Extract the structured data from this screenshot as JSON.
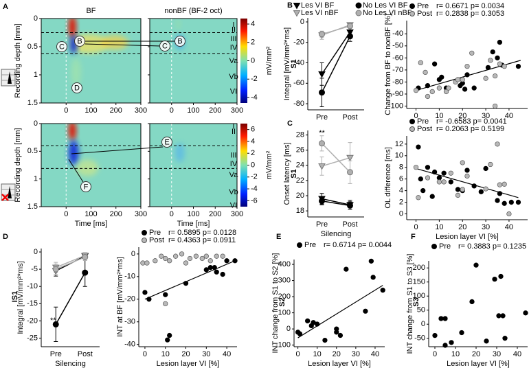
{
  "chart_data": [
    {
      "panel": "A",
      "type": "heatmap",
      "titles": [
        "BF",
        "nonBF (BF-2 oct)"
      ],
      "ylabel": "Recording depth [mm]",
      "xlim": [
        -100,
        300
      ],
      "xticks": [
        0,
        100,
        200,
        300
      ],
      "ylim": [
        0,
        1.5
      ],
      "yticks": [
        0,
        0.5,
        1,
        1.5
      ],
      "layers": [
        "I",
        "II",
        "III",
        "IV",
        "Va",
        "Vb",
        "VI"
      ],
      "boundaries": [
        0.25,
        0.62
      ],
      "clim": [
        -4.6,
        4.6
      ],
      "cticks": [
        -4,
        -2,
        0,
        2,
        4
      ],
      "clabel": "mV/mm²",
      "annotations": [
        "C",
        "B",
        "C",
        "B",
        "D"
      ]
    },
    {
      "type": "heatmap",
      "ylabel": "Recording depth [mm]",
      "xlabel": "Time [ms]",
      "xlim": [
        -100,
        300
      ],
      "xticks": [
        0,
        100,
        200,
        300
      ],
      "ylim": [
        0,
        1.5
      ],
      "yticks": [
        0,
        0.5,
        1,
        1.5
      ],
      "layers": [
        "I",
        "II",
        "III",
        "IV",
        "Va",
        "Vb",
        "VI"
      ],
      "boundaries": [
        0.4,
        0.81
      ],
      "clim": [
        -7,
        7
      ],
      "cticks": [
        -6,
        -4,
        -2,
        0,
        2,
        4,
        6
      ],
      "clabel": "mV/mm²",
      "annotations": [
        "E",
        "F"
      ]
    },
    {
      "panel": "B",
      "type": "line",
      "side_label": "S1",
      "ylabel": "Integral [mV/mm²*ms]",
      "categories": [
        "Pre",
        "Post"
      ],
      "ylim": [
        -86,
        4
      ],
      "yticks": [
        -80,
        -60,
        -40,
        -20,
        0
      ],
      "legend": true,
      "series": [
        {
          "name": "Les VI BF",
          "color": "#000000",
          "marker": "v",
          "values": [
            -51,
            -10
          ],
          "errors": [
            11,
            4
          ]
        },
        {
          "name": "Les VI nBF",
          "color": "#b0b0b0",
          "marker": "v",
          "values": [
            -13,
            -3
          ],
          "errors": [
            4,
            2
          ]
        },
        {
          "name": "No Les VI BF",
          "color": "#000000",
          "marker": "o",
          "values": [
            -69,
            -14
          ],
          "errors": [
            14,
            5
          ]
        },
        {
          "name": "No Les VI nBF",
          "color": "#b0b0b0",
          "marker": "o",
          "values": [
            -12,
            -4
          ],
          "errors": [
            3,
            2
          ]
        }
      ]
    },
    {
      "type": "scatter",
      "ylabel": "Change from BF to nonBF [%]",
      "xlim": [
        -4,
        48
      ],
      "xticks": [
        0,
        10,
        20,
        30,
        40
      ],
      "ylim": [
        -102,
        -29
      ],
      "yticks": [
        -100,
        -90,
        -80,
        -70,
        -60,
        -50,
        -40
      ],
      "series": [
        {
          "name": "Pre",
          "stats": "r= 0.6671  p= 0.0034",
          "color": "#000000",
          "x": [
            1,
            5,
            8,
            10,
            11,
            13,
            19,
            20,
            21,
            22,
            25,
            31,
            33,
            35,
            36,
            37,
            44
          ],
          "y": [
            -85,
            -83,
            -65,
            -78,
            -76,
            -85,
            -83,
            -81,
            -86,
            -74,
            -85,
            -68,
            -55,
            -60,
            -47,
            -66,
            -67
          ]
        },
        {
          "name": "Post",
          "stats": "r= 0.2838  p= 0.3053",
          "color": "#b8b8b8",
          "x": [
            0,
            2,
            4,
            5,
            7,
            10,
            13,
            14,
            17,
            18,
            20,
            22,
            24,
            30,
            32,
            34,
            34,
            36,
            38
          ],
          "y": [
            -87,
            -64,
            -72,
            -92,
            -88,
            -85,
            -88,
            -85,
            -80,
            -78,
            -78,
            -67,
            -56,
            -77,
            -62,
            -75,
            -100,
            -65,
            -67
          ]
        }
      ],
      "fit": {
        "x": [
          0,
          45
        ],
        "y": [
          -87,
          -62
        ]
      }
    },
    {
      "panel": "C",
      "type": "line",
      "side_label": "S1",
      "ylabel": "Onset latency [ms]",
      "xlabel": "Silencing",
      "annotation": "**",
      "categories": [
        "Pre",
        "Post"
      ],
      "ylim": [
        17.2,
        28.6
      ],
      "yticks": [
        18,
        20,
        22,
        24,
        26,
        28
      ],
      "series": [
        {
          "name": "Les VI BF",
          "color": "#000000",
          "marker": "v",
          "values": [
            19.6,
            18.8
          ],
          "errors": [
            0.7,
            0.6
          ]
        },
        {
          "name": "Les VI nBF",
          "color": "#b0b0b0",
          "marker": "v",
          "values": [
            23.9,
            25.0
          ],
          "errors": [
            1.2,
            2.0
          ]
        },
        {
          "name": "No Les VI BF",
          "color": "#000000",
          "marker": "o",
          "values": [
            19.3,
            18.7
          ],
          "errors": [
            0.5,
            0.5
          ]
        },
        {
          "name": "No Les VI nBF",
          "color": "#b0b0b0",
          "marker": "o",
          "values": [
            26.9,
            23.1
          ],
          "errors": [
            1.0,
            1.5
          ]
        }
      ]
    },
    {
      "type": "scatter",
      "ylabel": "OL difference [ms]",
      "xlabel": "Lesion layer VI [%]",
      "xlim": [
        -4,
        48
      ],
      "xticks": [
        0,
        10,
        20,
        30,
        40
      ],
      "ylim": [
        -1,
        13.4
      ],
      "yticks": [
        0,
        2,
        4,
        6,
        8,
        10,
        12
      ],
      "series": [
        {
          "name": "Pre",
          "stats": "r= -0.6583  p= 0.0041",
          "color": "#000000",
          "x": [
            1,
            2,
            3,
            5,
            7,
            8,
            10,
            12,
            15,
            18,
            20,
            22,
            25,
            28,
            30,
            35,
            36,
            38,
            41,
            44
          ],
          "y": [
            11.5,
            6,
            4,
            8,
            3,
            7.2,
            6.2,
            7,
            5.5,
            4.2,
            4,
            7.5,
            4.8,
            3.8,
            7.8,
            2.3,
            3.5,
            1.8,
            2,
            2
          ]
        },
        {
          "name": "Post",
          "stats": "r= 0.2063  p= 0.5199",
          "color": "#b8b8b8",
          "x": [
            0,
            1,
            5,
            10,
            12,
            15,
            18,
            20,
            20,
            22,
            30,
            32,
            35,
            36,
            38,
            40
          ],
          "y": [
            8,
            2.8,
            6.2,
            5.5,
            5.5,
            7,
            3.2,
            4.2,
            8.8,
            6.5,
            4.3,
            8.5,
            12,
            5,
            5.1,
            0
          ]
        }
      ],
      "fit": {
        "x": [
          0,
          44
        ],
        "y": [
          7.8,
          2.8
        ]
      }
    },
    {
      "panel": "D",
      "type": "line",
      "side_label": "IS1",
      "ylabel": "Integral [mV/mm²*ms]",
      "xlabel": "Silencing",
      "annotation": "**",
      "categories": [
        "Pre",
        "Post"
      ],
      "ylim": [
        -27.5,
        1
      ],
      "yticks": [
        -25,
        -20,
        -15,
        -10,
        -5,
        0
      ],
      "series": [
        {
          "name": "Les VI BF",
          "color": "#000000",
          "marker": "v",
          "values": [
            -5.5,
            -1.2
          ],
          "errors": [
            1.5,
            0.8
          ]
        },
        {
          "name": "Les VI nBF",
          "color": "#b0b0b0",
          "marker": "v",
          "values": [
            -4.5,
            -1
          ],
          "errors": [
            1.5,
            0.8
          ]
        },
        {
          "name": "No Les VI BF",
          "color": "#000000",
          "marker": "o",
          "values": [
            -21,
            -6
          ],
          "errors": [
            5,
            4
          ]
        },
        {
          "name": "No Les VI nBF",
          "color": "#b0b0b0",
          "marker": "o",
          "values": [
            -5,
            -1.5
          ],
          "errors": [
            1.5,
            1
          ]
        }
      ]
    },
    {
      "type": "scatter",
      "ylabel": "INT at BF [mV/mm²*ms]",
      "xlabel": "Lesion layer VI [%]",
      "xlim": [
        -3,
        45
      ],
      "xticks": [
        0,
        10,
        20,
        30,
        40
      ],
      "ylim": [
        -41,
        3
      ],
      "yticks": [
        -40,
        -30,
        -20,
        -10,
        0
      ],
      "series": [
        {
          "name": "Pre",
          "stats": "r= 0.5895  p= 0.0128",
          "color": "#000000",
          "x": [
            0,
            2,
            10,
            11,
            12,
            20,
            30,
            32,
            34,
            35,
            38,
            40,
            44
          ],
          "y": [
            -17,
            -20,
            -18,
            -38,
            -36,
            -13,
            -7,
            -6,
            -6,
            -8,
            -9,
            -3,
            -3
          ]
        },
        {
          "name": "Post",
          "stats": "r= 0.4363  p= 0.0911",
          "color": "#b8b8b8",
          "x": [
            -1,
            1,
            5,
            8,
            10,
            10,
            12,
            15,
            18,
            20,
            22,
            25,
            28,
            30,
            32,
            35,
            38
          ],
          "y": [
            -4,
            -4,
            -3,
            -1,
            -2,
            -22,
            -3,
            -1,
            0,
            -4,
            -2,
            -1,
            -2,
            -1,
            -3,
            -1,
            -1
          ]
        }
      ],
      "fit": {
        "x": [
          0,
          44
        ],
        "y": [
          -20,
          -3
        ]
      }
    },
    {
      "panel": "E",
      "type": "scatter",
      "side_label": "S2",
      "ylabel": "INT change from S1 to S2 [%]",
      "xlabel": "Lesion layer VI [%]",
      "xlim": [
        -2,
        45
      ],
      "xticks": [
        0,
        10,
        20,
        30,
        40
      ],
      "ylim": [
        -110,
        430
      ],
      "yticks": [
        -100,
        0,
        100,
        200,
        300,
        400
      ],
      "series": [
        {
          "name": "Pre",
          "stats": "r= 0.6714  p= 0.0044",
          "color": "#000000",
          "x": [
            0,
            1,
            5,
            7,
            8,
            10,
            14,
            20,
            20,
            22,
            25,
            35,
            38,
            39,
            44
          ],
          "y": [
            -20,
            -30,
            50,
            20,
            40,
            30,
            -70,
            -20,
            0,
            -40,
            370,
            110,
            420,
            320,
            240
          ]
        }
      ],
      "fit": {
        "x": [
          0,
          44
        ],
        "y": [
          -55,
          270
        ]
      }
    },
    {
      "panel": "F",
      "type": "scatter",
      "side_label": "S3",
      "ylabel": "INT change from S1 to S3 [%]",
      "xlabel": "Lesion layer VI [%]",
      "xlim": [
        -3,
        45
      ],
      "xticks": [
        0,
        10,
        20,
        30,
        40
      ],
      "ylim": [
        -80,
        225
      ],
      "yticks": [
        -50,
        0,
        50,
        100,
        150,
        200
      ],
      "series": [
        {
          "name": "Pre",
          "stats": "r= 0.3883  p= 0.1235",
          "color": "#000000",
          "x": [
            0,
            3,
            5,
            5,
            8,
            13,
            18,
            20,
            25,
            29,
            31,
            32,
            33,
            34,
            44
          ],
          "y": [
            -40,
            20,
            20,
            -75,
            -65,
            -30,
            80,
            210,
            -60,
            160,
            30,
            170,
            30,
            -50,
            40
          ]
        }
      ]
    }
  ]
}
